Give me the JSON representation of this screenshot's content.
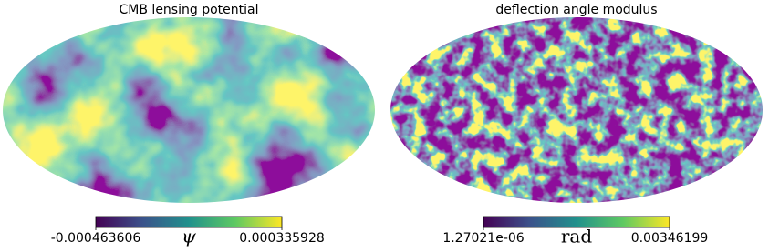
{
  "chart_data": [
    {
      "type": "mollweide",
      "title": "CMB lensing potential",
      "colormap": [
        "#440154",
        "#3b528b",
        "#21918c",
        "#5ec962",
        "#fde725"
      ],
      "clim": [
        -0.000463606,
        0.000335928
      ],
      "cticks": [
        -0.000463606,
        0.000335928
      ],
      "unit": "ψ"
    },
    {
      "type": "mollweide",
      "title": "deflection angle modulus",
      "colormap": [
        "#440154",
        "#3b528b",
        "#21918c",
        "#5ec962",
        "#fde725"
      ],
      "clim": [
        1.27021e-06,
        0.00346199
      ],
      "cticks": [
        {
          "value": 1.27021e-06,
          "label": "1.27021e-06"
        },
        0.00346199
      ],
      "unit": "rad"
    }
  ]
}
